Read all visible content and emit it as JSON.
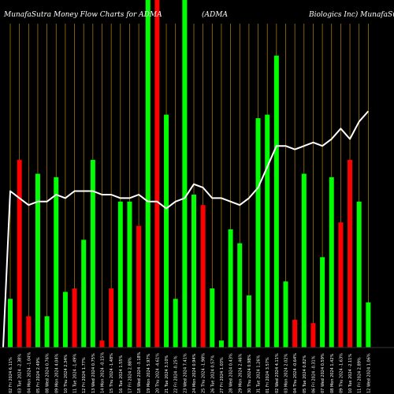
{
  "header": {
    "left": "MunafaSutra  Money Flow  Charts for ADMA",
    "middle": "(ADMA",
    "right": "Biologics Inc) MunafaSutra.com"
  },
  "chart_data": {
    "type": "bar",
    "title": "MunafaSutra  Money Flow  Charts for ADMA",
    "up_color": "#00ff00",
    "down_color": "#ff0000",
    "grid_color": "#b8860b",
    "line_color": "#ffffff",
    "background": "#000000",
    "grid": true,
    "ylim": [
      0,
      100
    ],
    "categories": [
      "02 Fri 2024 6.11%",
      "03 Tue 2024 -2.38%",
      "04 Mon 2024 -1.04%",
      "05 Fri 2024 2.49%",
      "08 Wed 2024 0.76%",
      "09 Mon 2024 4.04%",
      "10 Thu 2024 2.34%",
      "11 Tue 2024 -1.49%",
      "12 Fri 2024 1.77%",
      "13 Wed 2024 0.75%",
      "14 Mon 2024 -0.15%",
      "15 Thu 2024 -1.48%",
      "16 Tue 2024 1.55%",
      "17 Fri 2024 2.88%",
      "18 Wed 2024 -3.18%",
      "19 Mon 2024 5.97%",
      "20 Thu 2024 -4.61%",
      "21 Tue 2024 3.10%",
      "22 Fri 2024 -0.25%",
      "23 Wed 2024 7.41%",
      "24 Mon 2024 0.94%",
      "25 Thu 2024 -1.98%",
      "26 Tue 2024 0.57%",
      "27 Fri 2024 1.03%",
      "28 Wed 2024 0.43%",
      "29 Mon 2024 2.46%",
      "30 Thu 2024 0.98%",
      "31 Tue 2024 1.26%",
      "01 Fri 2024 3.57%",
      "02 Wed 2024 4.11%",
      "03 Mon 2024 2.02%",
      "04 Thu 2024 -0.64%",
      "05 Tue 2024 0.82%",
      "06 Fri 2024 -0.31%",
      "07 Wed 2024 0.59%",
      "08 Mon 2024 1.42%",
      "09 Thu 2024 -1.63%",
      "10 Tue 2024 -2.11%",
      "11 Fri 2024 2.89%",
      "12 Wed 2024 1.06%"
    ],
    "values": [
      14,
      54,
      9,
      50,
      9,
      49,
      16,
      17,
      31,
      54,
      2,
      17,
      42,
      42,
      35,
      100,
      100,
      67,
      14,
      100,
      44,
      41,
      17,
      2,
      34,
      30,
      15,
      66,
      67,
      84,
      19,
      8,
      50,
      7,
      26,
      49,
      36,
      54,
      42,
      13
    ],
    "colors": [
      "up",
      "down",
      "down",
      "up",
      "up",
      "up",
      "up",
      "down",
      "up",
      "up",
      "down",
      "down",
      "up",
      "up",
      "down",
      "up",
      "down",
      "up",
      "up",
      "up",
      "up",
      "down",
      "up",
      "up",
      "up",
      "up",
      "up",
      "up",
      "up",
      "up",
      "up",
      "down",
      "up",
      "down",
      "up",
      "up",
      "down",
      "down",
      "up",
      "up"
    ],
    "line": [
      45,
      43,
      41,
      42,
      42,
      44,
      43,
      45,
      45,
      45,
      44,
      44,
      43,
      43,
      44,
      42,
      42,
      40,
      42,
      43,
      47,
      46,
      43,
      43,
      42,
      41,
      43,
      46,
      52,
      58,
      58,
      57,
      58,
      59,
      58,
      60,
      63,
      60,
      65,
      68
    ]
  }
}
